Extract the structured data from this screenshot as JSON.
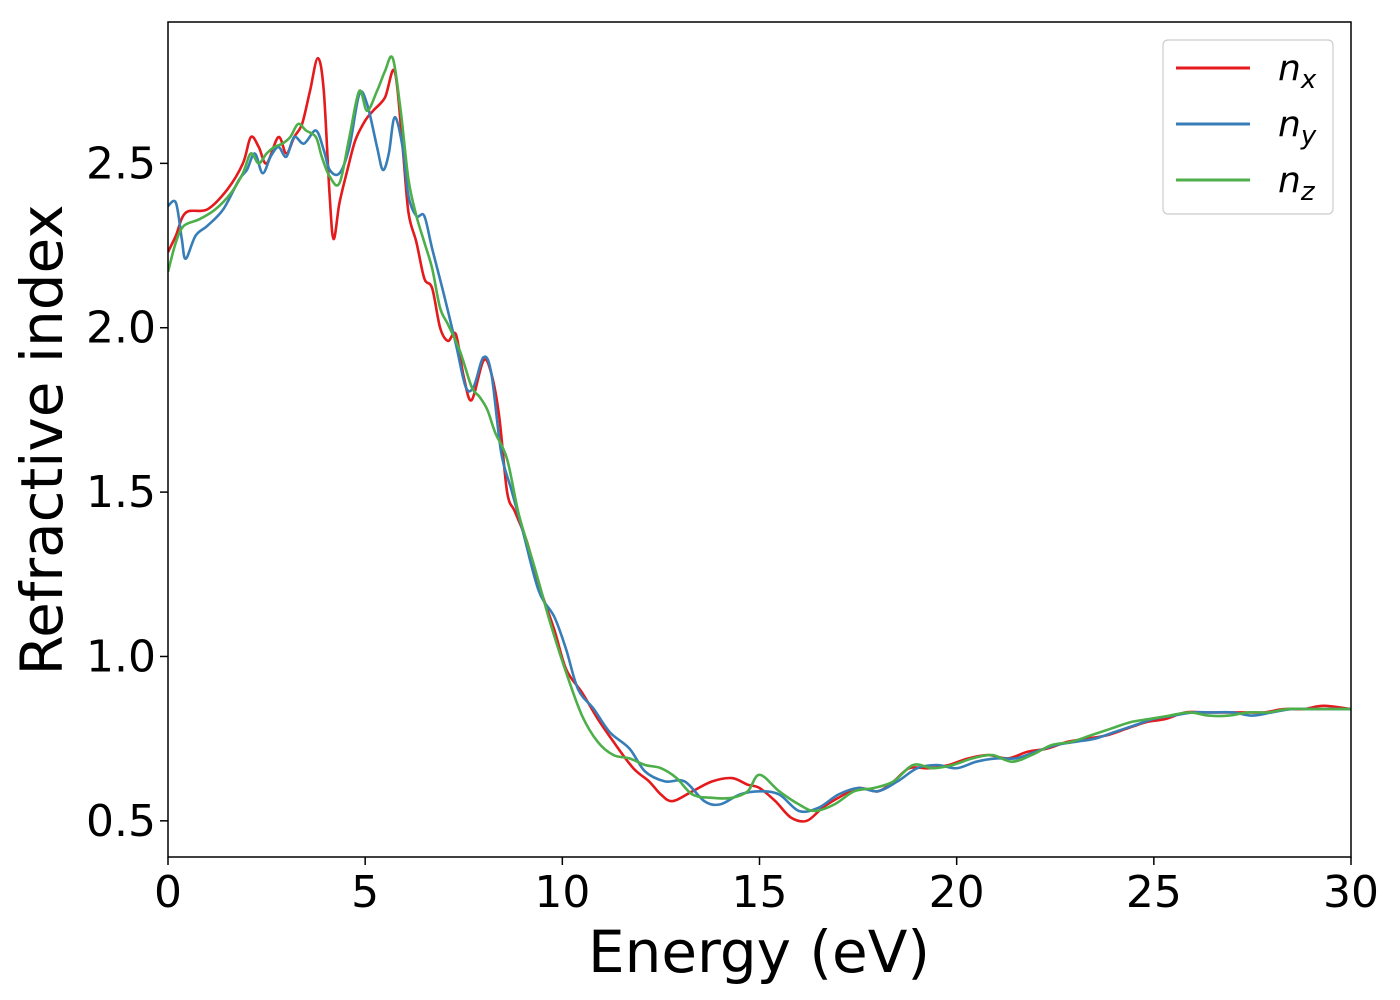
{
  "chart_data": {
    "type": "line",
    "title": "",
    "xlabel": "Energy (eV)",
    "ylabel": "Refractive index",
    "xlim": [
      0,
      30
    ],
    "ylim": [
      0.39,
      2.93
    ],
    "xticks": [
      0,
      5,
      10,
      15,
      20,
      25,
      30
    ],
    "yticks": [
      0.5,
      1.0,
      1.5,
      2.0,
      2.5
    ],
    "xtick_labels": [
      "0",
      "5",
      "10",
      "15",
      "20",
      "25",
      "30"
    ],
    "ytick_labels": [
      "0.5",
      "1.0",
      "1.5",
      "2.0",
      "2.5"
    ],
    "grid": false,
    "legend_position": "top-right",
    "series": [
      {
        "name": "n",
        "subscript": "x",
        "color": "#e41a1c",
        "points": [
          [
            0,
            2.23
          ],
          [
            0.2,
            2.28
          ],
          [
            0.45,
            2.35
          ],
          [
            1.0,
            2.36
          ],
          [
            1.5,
            2.42
          ],
          [
            1.9,
            2.5
          ],
          [
            2.1,
            2.58
          ],
          [
            2.3,
            2.55
          ],
          [
            2.5,
            2.5
          ],
          [
            2.8,
            2.58
          ],
          [
            3.0,
            2.53
          ],
          [
            3.2,
            2.58
          ],
          [
            3.4,
            2.62
          ],
          [
            3.6,
            2.72
          ],
          [
            3.8,
            2.82
          ],
          [
            3.95,
            2.72
          ],
          [
            4.1,
            2.4
          ],
          [
            4.2,
            2.27
          ],
          [
            4.35,
            2.38
          ],
          [
            4.55,
            2.48
          ],
          [
            4.75,
            2.57
          ],
          [
            5.0,
            2.63
          ],
          [
            5.2,
            2.66
          ],
          [
            5.5,
            2.7
          ],
          [
            5.75,
            2.78
          ],
          [
            5.95,
            2.55
          ],
          [
            6.1,
            2.35
          ],
          [
            6.3,
            2.26
          ],
          [
            6.5,
            2.15
          ],
          [
            6.7,
            2.12
          ],
          [
            6.9,
            2.0
          ],
          [
            7.1,
            1.96
          ],
          [
            7.3,
            1.98
          ],
          [
            7.5,
            1.85
          ],
          [
            7.7,
            1.78
          ],
          [
            8.0,
            1.9
          ],
          [
            8.2,
            1.86
          ],
          [
            8.4,
            1.73
          ],
          [
            8.6,
            1.5
          ],
          [
            8.8,
            1.44
          ],
          [
            9.1,
            1.35
          ],
          [
            9.4,
            1.22
          ],
          [
            9.8,
            1.08
          ],
          [
            10.1,
            0.96
          ],
          [
            10.5,
            0.89
          ],
          [
            10.9,
            0.81
          ],
          [
            11.3,
            0.74
          ],
          [
            11.8,
            0.66
          ],
          [
            12.2,
            0.62
          ],
          [
            12.5,
            0.58
          ],
          [
            12.8,
            0.56
          ],
          [
            13.3,
            0.59
          ],
          [
            13.8,
            0.62
          ],
          [
            14.3,
            0.63
          ],
          [
            14.7,
            0.61
          ],
          [
            15.0,
            0.6
          ],
          [
            15.4,
            0.56
          ],
          [
            15.8,
            0.51
          ],
          [
            16.2,
            0.5
          ],
          [
            16.6,
            0.54
          ],
          [
            17.0,
            0.57
          ],
          [
            17.5,
            0.6
          ],
          [
            18.0,
            0.59
          ],
          [
            18.4,
            0.62
          ],
          [
            18.8,
            0.66
          ],
          [
            19.3,
            0.66
          ],
          [
            19.8,
            0.67
          ],
          [
            20.3,
            0.69
          ],
          [
            20.8,
            0.7
          ],
          [
            21.3,
            0.69
          ],
          [
            21.8,
            0.71
          ],
          [
            22.3,
            0.72
          ],
          [
            22.8,
            0.74
          ],
          [
            23.3,
            0.75
          ],
          [
            23.8,
            0.76
          ],
          [
            24.3,
            0.78
          ],
          [
            24.8,
            0.8
          ],
          [
            25.3,
            0.81
          ],
          [
            25.8,
            0.83
          ],
          [
            26.3,
            0.83
          ],
          [
            26.8,
            0.83
          ],
          [
            27.3,
            0.83
          ],
          [
            27.8,
            0.83
          ],
          [
            28.3,
            0.84
          ],
          [
            28.8,
            0.84
          ],
          [
            29.3,
            0.85
          ],
          [
            30,
            0.84
          ]
        ]
      },
      {
        "name": "n",
        "subscript": "y",
        "color": "#377eb8",
        "points": [
          [
            0,
            2.37
          ],
          [
            0.2,
            2.38
          ],
          [
            0.35,
            2.27
          ],
          [
            0.45,
            2.21
          ],
          [
            0.7,
            2.28
          ],
          [
            1.0,
            2.31
          ],
          [
            1.4,
            2.36
          ],
          [
            1.8,
            2.45
          ],
          [
            2.0,
            2.48
          ],
          [
            2.2,
            2.53
          ],
          [
            2.4,
            2.47
          ],
          [
            2.6,
            2.52
          ],
          [
            2.8,
            2.55
          ],
          [
            3.0,
            2.52
          ],
          [
            3.2,
            2.58
          ],
          [
            3.45,
            2.56
          ],
          [
            3.75,
            2.6
          ],
          [
            3.95,
            2.54
          ],
          [
            4.1,
            2.48
          ],
          [
            4.35,
            2.47
          ],
          [
            4.6,
            2.55
          ],
          [
            4.85,
            2.71
          ],
          [
            5.05,
            2.68
          ],
          [
            5.3,
            2.55
          ],
          [
            5.45,
            2.48
          ],
          [
            5.6,
            2.53
          ],
          [
            5.75,
            2.64
          ],
          [
            5.95,
            2.55
          ],
          [
            6.1,
            2.4
          ],
          [
            6.3,
            2.34
          ],
          [
            6.5,
            2.34
          ],
          [
            6.7,
            2.24
          ],
          [
            7.0,
            2.1
          ],
          [
            7.3,
            1.95
          ],
          [
            7.55,
            1.82
          ],
          [
            7.75,
            1.82
          ],
          [
            8.0,
            1.91
          ],
          [
            8.2,
            1.86
          ],
          [
            8.45,
            1.62
          ],
          [
            8.7,
            1.51
          ],
          [
            9.0,
            1.38
          ],
          [
            9.4,
            1.2
          ],
          [
            9.8,
            1.12
          ],
          [
            10.1,
            1.02
          ],
          [
            10.4,
            0.9
          ],
          [
            10.8,
            0.84
          ],
          [
            11.2,
            0.77
          ],
          [
            11.7,
            0.72
          ],
          [
            12.1,
            0.65
          ],
          [
            12.6,
            0.62
          ],
          [
            13.1,
            0.62
          ],
          [
            13.6,
            0.56
          ],
          [
            14.0,
            0.55
          ],
          [
            14.5,
            0.58
          ],
          [
            15.0,
            0.59
          ],
          [
            15.5,
            0.58
          ],
          [
            16.0,
            0.53
          ],
          [
            16.5,
            0.54
          ],
          [
            17.0,
            0.58
          ],
          [
            17.5,
            0.6
          ],
          [
            18.0,
            0.59
          ],
          [
            18.5,
            0.62
          ],
          [
            19.0,
            0.66
          ],
          [
            19.5,
            0.67
          ],
          [
            20.0,
            0.66
          ],
          [
            20.5,
            0.68
          ],
          [
            21.0,
            0.69
          ],
          [
            21.5,
            0.69
          ],
          [
            22.0,
            0.71
          ],
          [
            22.5,
            0.73
          ],
          [
            23.0,
            0.74
          ],
          [
            23.5,
            0.75
          ],
          [
            24.0,
            0.77
          ],
          [
            24.5,
            0.79
          ],
          [
            25.0,
            0.81
          ],
          [
            25.5,
            0.82
          ],
          [
            26.0,
            0.83
          ],
          [
            26.5,
            0.83
          ],
          [
            27.0,
            0.83
          ],
          [
            27.5,
            0.82
          ],
          [
            28.0,
            0.83
          ],
          [
            28.5,
            0.84
          ],
          [
            29.0,
            0.84
          ],
          [
            29.5,
            0.84
          ],
          [
            30,
            0.84
          ]
        ]
      },
      {
        "name": "n",
        "subscript": "z",
        "color": "#4daf4a",
        "points": [
          [
            0,
            2.17
          ],
          [
            0.2,
            2.26
          ],
          [
            0.4,
            2.31
          ],
          [
            0.8,
            2.33
          ],
          [
            1.2,
            2.36
          ],
          [
            1.6,
            2.41
          ],
          [
            1.9,
            2.47
          ],
          [
            2.1,
            2.53
          ],
          [
            2.3,
            2.5
          ],
          [
            2.5,
            2.53
          ],
          [
            2.7,
            2.55
          ],
          [
            2.9,
            2.56
          ],
          [
            3.1,
            2.58
          ],
          [
            3.3,
            2.62
          ],
          [
            3.5,
            2.6
          ],
          [
            3.75,
            2.58
          ],
          [
            3.9,
            2.52
          ],
          [
            4.1,
            2.46
          ],
          [
            4.35,
            2.44
          ],
          [
            4.6,
            2.58
          ],
          [
            4.85,
            2.72
          ],
          [
            5.05,
            2.66
          ],
          [
            5.3,
            2.72
          ],
          [
            5.5,
            2.78
          ],
          [
            5.7,
            2.82
          ],
          [
            5.9,
            2.66
          ],
          [
            6.1,
            2.45
          ],
          [
            6.3,
            2.34
          ],
          [
            6.5,
            2.26
          ],
          [
            6.7,
            2.18
          ],
          [
            6.9,
            2.06
          ],
          [
            7.1,
            2.01
          ],
          [
            7.4,
            1.93
          ],
          [
            7.7,
            1.82
          ],
          [
            7.9,
            1.79
          ],
          [
            8.1,
            1.75
          ],
          [
            8.3,
            1.68
          ],
          [
            8.6,
            1.6
          ],
          [
            8.9,
            1.43
          ],
          [
            9.3,
            1.27
          ],
          [
            9.7,
            1.1
          ],
          [
            10.1,
            0.95
          ],
          [
            10.5,
            0.82
          ],
          [
            10.9,
            0.74
          ],
          [
            11.3,
            0.7
          ],
          [
            11.7,
            0.69
          ],
          [
            12.1,
            0.67
          ],
          [
            12.5,
            0.66
          ],
          [
            12.9,
            0.63
          ],
          [
            13.3,
            0.58
          ],
          [
            13.8,
            0.57
          ],
          [
            14.3,
            0.57
          ],
          [
            14.7,
            0.59
          ],
          [
            15.0,
            0.64
          ],
          [
            15.5,
            0.59
          ],
          [
            16.0,
            0.55
          ],
          [
            16.4,
            0.53
          ],
          [
            16.9,
            0.55
          ],
          [
            17.4,
            0.59
          ],
          [
            17.9,
            0.6
          ],
          [
            18.4,
            0.62
          ],
          [
            18.9,
            0.67
          ],
          [
            19.4,
            0.66
          ],
          [
            19.9,
            0.67
          ],
          [
            20.4,
            0.69
          ],
          [
            20.9,
            0.7
          ],
          [
            21.4,
            0.68
          ],
          [
            21.9,
            0.7
          ],
          [
            22.4,
            0.73
          ],
          [
            22.9,
            0.74
          ],
          [
            23.4,
            0.76
          ],
          [
            23.9,
            0.78
          ],
          [
            24.4,
            0.8
          ],
          [
            24.9,
            0.81
          ],
          [
            25.4,
            0.82
          ],
          [
            25.9,
            0.83
          ],
          [
            26.4,
            0.82
          ],
          [
            26.9,
            0.82
          ],
          [
            27.4,
            0.83
          ],
          [
            27.9,
            0.83
          ],
          [
            28.4,
            0.84
          ],
          [
            28.9,
            0.84
          ],
          [
            29.4,
            0.84
          ],
          [
            30,
            0.84
          ]
        ]
      }
    ]
  }
}
